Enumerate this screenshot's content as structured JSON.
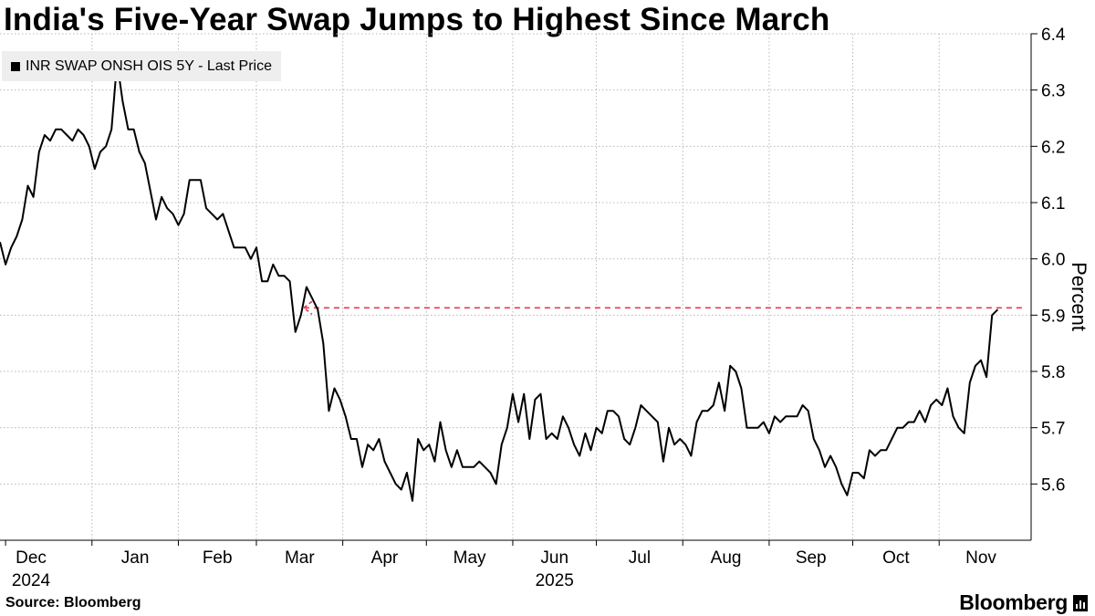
{
  "title": "India's Five-Year Swap Jumps to Highest Since March",
  "legend_label": "INR SWAP ONSH OIS 5Y - Last Price",
  "source": "Source: Bloomberg",
  "brand": "Bloomberg",
  "colors": {
    "line": "#000000",
    "reference": "#e8384f",
    "grid": "#b8b8b8",
    "legend_bg": "#eeeeee"
  },
  "chart_data": {
    "type": "line",
    "title": "India's Five-Year Swap Jumps to Highest Since March",
    "ylabel": "Percent",
    "xlabel": "",
    "ylim": [
      5.5,
      6.4
    ],
    "yticks": [
      5.6,
      5.7,
      5.8,
      5.9,
      6.0,
      6.1,
      6.2,
      6.3,
      6.4
    ],
    "x_range": [
      "2024-11-29",
      "2025-12-04"
    ],
    "month_labels": [
      {
        "label": "Dec",
        "sub": "2024",
        "date": "2024-12-01"
      },
      {
        "label": "Jan",
        "sub": "",
        "date": "2025-01-01"
      },
      {
        "label": "Feb",
        "sub": "",
        "date": "2025-02-01"
      },
      {
        "label": "Mar",
        "sub": "",
        "date": "2025-03-01"
      },
      {
        "label": "Apr",
        "sub": "",
        "date": "2025-04-01"
      },
      {
        "label": "May",
        "sub": "",
        "date": "2025-05-01"
      },
      {
        "label": "Jun",
        "sub": "2025",
        "date": "2025-06-01"
      },
      {
        "label": "Jul",
        "sub": "",
        "date": "2025-07-01"
      },
      {
        "label": "Aug",
        "sub": "",
        "date": "2025-08-01"
      },
      {
        "label": "Sep",
        "sub": "",
        "date": "2025-09-01"
      },
      {
        "label": "Oct",
        "sub": "",
        "date": "2025-10-01"
      },
      {
        "label": "Nov",
        "sub": "",
        "date": "2025-11-01"
      }
    ],
    "reference_line": {
      "value": 5.913,
      "from_date": "2025-03-18",
      "to_date": "2025-12-01",
      "style": "dashed"
    },
    "series": [
      {
        "name": "INR SWAP ONSH OIS 5Y - Last Price",
        "points": [
          [
            "2024-11-29",
            6.03
          ],
          [
            "2024-12-01",
            5.99
          ],
          [
            "2024-12-03",
            6.02
          ],
          [
            "2024-12-05",
            6.04
          ],
          [
            "2024-12-07",
            6.07
          ],
          [
            "2024-12-09",
            6.13
          ],
          [
            "2024-12-11",
            6.11
          ],
          [
            "2024-12-13",
            6.19
          ],
          [
            "2024-12-15",
            6.22
          ],
          [
            "2024-12-17",
            6.21
          ],
          [
            "2024-12-19",
            6.23
          ],
          [
            "2024-12-21",
            6.23
          ],
          [
            "2024-12-23",
            6.22
          ],
          [
            "2024-12-25",
            6.21
          ],
          [
            "2024-12-27",
            6.23
          ],
          [
            "2024-12-29",
            6.22
          ],
          [
            "2024-12-31",
            6.2
          ],
          [
            "2025-01-02",
            6.16
          ],
          [
            "2025-01-04",
            6.19
          ],
          [
            "2025-01-06",
            6.2
          ],
          [
            "2025-01-08",
            6.23
          ],
          [
            "2025-01-10",
            6.35
          ],
          [
            "2025-01-12",
            6.28
          ],
          [
            "2025-01-14",
            6.23
          ],
          [
            "2025-01-16",
            6.23
          ],
          [
            "2025-01-18",
            6.19
          ],
          [
            "2025-01-20",
            6.17
          ],
          [
            "2025-01-22",
            6.12
          ],
          [
            "2025-01-24",
            6.07
          ],
          [
            "2025-01-26",
            6.11
          ],
          [
            "2025-01-28",
            6.09
          ],
          [
            "2025-01-30",
            6.08
          ],
          [
            "2025-02-01",
            6.06
          ],
          [
            "2025-02-03",
            6.08
          ],
          [
            "2025-02-05",
            6.14
          ],
          [
            "2025-02-07",
            6.14
          ],
          [
            "2025-02-09",
            6.14
          ],
          [
            "2025-02-11",
            6.09
          ],
          [
            "2025-02-13",
            6.08
          ],
          [
            "2025-02-15",
            6.07
          ],
          [
            "2025-02-17",
            6.08
          ],
          [
            "2025-02-19",
            6.05
          ],
          [
            "2025-02-21",
            6.02
          ],
          [
            "2025-02-23",
            6.02
          ],
          [
            "2025-02-25",
            6.02
          ],
          [
            "2025-02-27",
            6.0
          ],
          [
            "2025-03-01",
            6.02
          ],
          [
            "2025-03-03",
            5.96
          ],
          [
            "2025-03-05",
            5.96
          ],
          [
            "2025-03-07",
            5.99
          ],
          [
            "2025-03-09",
            5.97
          ],
          [
            "2025-03-11",
            5.97
          ],
          [
            "2025-03-13",
            5.96
          ],
          [
            "2025-03-15",
            5.87
          ],
          [
            "2025-03-17",
            5.9
          ],
          [
            "2025-03-19",
            5.95
          ],
          [
            "2025-03-21",
            5.93
          ],
          [
            "2025-03-23",
            5.91
          ],
          [
            "2025-03-25",
            5.85
          ],
          [
            "2025-03-27",
            5.73
          ],
          [
            "2025-03-29",
            5.77
          ],
          [
            "2025-03-31",
            5.75
          ],
          [
            "2025-04-02",
            5.72
          ],
          [
            "2025-04-04",
            5.68
          ],
          [
            "2025-04-06",
            5.68
          ],
          [
            "2025-04-08",
            5.63
          ],
          [
            "2025-04-10",
            5.67
          ],
          [
            "2025-04-12",
            5.66
          ],
          [
            "2025-04-14",
            5.68
          ],
          [
            "2025-04-16",
            5.64
          ],
          [
            "2025-04-18",
            5.62
          ],
          [
            "2025-04-20",
            5.6
          ],
          [
            "2025-04-22",
            5.59
          ],
          [
            "2025-04-24",
            5.62
          ],
          [
            "2025-04-26",
            5.57
          ],
          [
            "2025-04-28",
            5.68
          ],
          [
            "2025-04-30",
            5.66
          ],
          [
            "2025-05-02",
            5.67
          ],
          [
            "2025-05-04",
            5.64
          ],
          [
            "2025-05-06",
            5.71
          ],
          [
            "2025-05-08",
            5.66
          ],
          [
            "2025-05-10",
            5.63
          ],
          [
            "2025-05-12",
            5.66
          ],
          [
            "2025-05-14",
            5.63
          ],
          [
            "2025-05-16",
            5.63
          ],
          [
            "2025-05-18",
            5.63
          ],
          [
            "2025-05-20",
            5.64
          ],
          [
            "2025-05-22",
            5.63
          ],
          [
            "2025-05-24",
            5.62
          ],
          [
            "2025-05-26",
            5.6
          ],
          [
            "2025-05-28",
            5.67
          ],
          [
            "2025-05-30",
            5.7
          ],
          [
            "2025-06-01",
            5.76
          ],
          [
            "2025-06-03",
            5.71
          ],
          [
            "2025-06-05",
            5.76
          ],
          [
            "2025-06-07",
            5.68
          ],
          [
            "2025-06-09",
            5.75
          ],
          [
            "2025-06-11",
            5.76
          ],
          [
            "2025-06-13",
            5.68
          ],
          [
            "2025-06-15",
            5.69
          ],
          [
            "2025-06-17",
            5.68
          ],
          [
            "2025-06-19",
            5.72
          ],
          [
            "2025-06-21",
            5.7
          ],
          [
            "2025-06-23",
            5.67
          ],
          [
            "2025-06-25",
            5.65
          ],
          [
            "2025-06-27",
            5.69
          ],
          [
            "2025-06-29",
            5.66
          ],
          [
            "2025-07-01",
            5.7
          ],
          [
            "2025-07-03",
            5.69
          ],
          [
            "2025-07-05",
            5.73
          ],
          [
            "2025-07-07",
            5.73
          ],
          [
            "2025-07-09",
            5.72
          ],
          [
            "2025-07-11",
            5.68
          ],
          [
            "2025-07-13",
            5.67
          ],
          [
            "2025-07-15",
            5.7
          ],
          [
            "2025-07-17",
            5.74
          ],
          [
            "2025-07-19",
            5.73
          ],
          [
            "2025-07-21",
            5.72
          ],
          [
            "2025-07-23",
            5.71
          ],
          [
            "2025-07-25",
            5.64
          ],
          [
            "2025-07-27",
            5.7
          ],
          [
            "2025-07-29",
            5.67
          ],
          [
            "2025-07-31",
            5.68
          ],
          [
            "2025-08-02",
            5.67
          ],
          [
            "2025-08-04",
            5.65
          ],
          [
            "2025-08-06",
            5.71
          ],
          [
            "2025-08-08",
            5.73
          ],
          [
            "2025-08-10",
            5.73
          ],
          [
            "2025-08-12",
            5.74
          ],
          [
            "2025-08-14",
            5.78
          ],
          [
            "2025-08-16",
            5.73
          ],
          [
            "2025-08-18",
            5.81
          ],
          [
            "2025-08-20",
            5.8
          ],
          [
            "2025-08-22",
            5.77
          ],
          [
            "2025-08-24",
            5.7
          ],
          [
            "2025-08-26",
            5.7
          ],
          [
            "2025-08-28",
            5.7
          ],
          [
            "2025-08-30",
            5.71
          ],
          [
            "2025-09-01",
            5.69
          ],
          [
            "2025-09-03",
            5.72
          ],
          [
            "2025-09-05",
            5.71
          ],
          [
            "2025-09-07",
            5.72
          ],
          [
            "2025-09-09",
            5.72
          ],
          [
            "2025-09-11",
            5.72
          ],
          [
            "2025-09-13",
            5.74
          ],
          [
            "2025-09-15",
            5.73
          ],
          [
            "2025-09-17",
            5.68
          ],
          [
            "2025-09-19",
            5.66
          ],
          [
            "2025-09-21",
            5.63
          ],
          [
            "2025-09-23",
            5.65
          ],
          [
            "2025-09-25",
            5.63
          ],
          [
            "2025-09-27",
            5.6
          ],
          [
            "2025-09-29",
            5.58
          ],
          [
            "2025-10-01",
            5.62
          ],
          [
            "2025-10-03",
            5.62
          ],
          [
            "2025-10-05",
            5.61
          ],
          [
            "2025-10-07",
            5.66
          ],
          [
            "2025-10-09",
            5.65
          ],
          [
            "2025-10-11",
            5.66
          ],
          [
            "2025-10-13",
            5.66
          ],
          [
            "2025-10-15",
            5.68
          ],
          [
            "2025-10-17",
            5.7
          ],
          [
            "2025-10-19",
            5.7
          ],
          [
            "2025-10-21",
            5.71
          ],
          [
            "2025-10-23",
            5.71
          ],
          [
            "2025-10-25",
            5.73
          ],
          [
            "2025-10-27",
            5.71
          ],
          [
            "2025-10-29",
            5.74
          ],
          [
            "2025-10-31",
            5.75
          ],
          [
            "2025-11-02",
            5.74
          ],
          [
            "2025-11-04",
            5.77
          ],
          [
            "2025-11-06",
            5.72
          ],
          [
            "2025-11-08",
            5.7
          ],
          [
            "2025-11-10",
            5.69
          ],
          [
            "2025-11-12",
            5.78
          ],
          [
            "2025-11-14",
            5.81
          ],
          [
            "2025-11-16",
            5.82
          ],
          [
            "2025-11-18",
            5.79
          ],
          [
            "2025-11-20",
            5.9
          ],
          [
            "2025-11-22",
            5.91
          ]
        ]
      }
    ]
  }
}
